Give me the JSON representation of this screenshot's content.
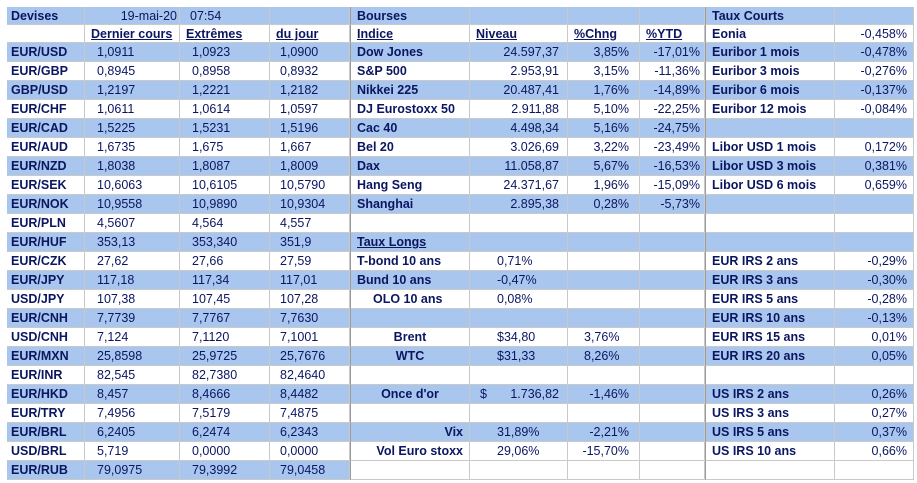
{
  "rows": [
    [
      "Devises",
      "19-mai-20",
      "07:54",
      null,
      "Bourses",
      null,
      null,
      null,
      "Taux Courts",
      null
    ],
    [
      null,
      "Dernier cours",
      "Extrêmes",
      "du jour",
      "Indice",
      "Niveau",
      "%Chng",
      "%YTD",
      "Eonia",
      "-0,458%"
    ],
    [
      "EUR/USD",
      "1,0911",
      "1,0923",
      "1,0900",
      "Dow Jones",
      "24.597,37",
      "3,85%",
      "-17,01%",
      "Euribor 1 mois",
      "-0,478%"
    ],
    [
      "EUR/GBP",
      "0,8945",
      "0,8958",
      "0,8932",
      "S&P 500",
      "2.953,91",
      "3,15%",
      "-11,36%",
      "Euribor 3 mois",
      "-0,276%"
    ],
    [
      "GBP/USD",
      "1,2197",
      "1,2221",
      "1,2182",
      "Nikkei 225",
      "20.487,41",
      "1,76%",
      "-14,89%",
      "Euribor 6 mois",
      "-0,137%"
    ],
    [
      "EUR/CHF",
      "1,0611",
      "1,0614",
      "1,0597",
      "DJ Eurostoxx 50",
      "2.911,88",
      "5,10%",
      "-22,25%",
      "Euribor 12 mois",
      "-0,084%"
    ],
    [
      "EUR/CAD",
      "1,5225",
      "1,5231",
      "1,5196",
      "Cac 40",
      "4.498,34",
      "5,16%",
      "-24,75%",
      null,
      null
    ],
    [
      "EUR/AUD",
      "1,6735",
      "1,675",
      "1,667",
      "Bel 20",
      "3.026,69",
      "3,22%",
      "-23,49%",
      "Libor USD 1 mois",
      "0,172%"
    ],
    [
      "EUR/NZD",
      "1,8038",
      "1,8087",
      "1,8009",
      "Dax",
      "11.058,87",
      "5,67%",
      "-16,53%",
      "Libor USD 3 mois",
      "0,381%"
    ],
    [
      "EUR/SEK",
      "10,6063",
      "10,6105",
      "10,5790",
      "Hang Seng",
      "24.371,67",
      "1,96%",
      "-15,09%",
      "Libor USD 6 mois",
      "0,659%"
    ],
    [
      "EUR/NOK",
      "10,9558",
      "10,9890",
      "10,9304",
      "Shanghai",
      "2.895,38",
      "0,28%",
      "-5,73%",
      null,
      null
    ],
    [
      "EUR/PLN",
      "4,5607",
      "4,564",
      "4,557",
      null,
      null,
      null,
      null,
      null,
      null
    ],
    [
      "EUR/HUF",
      "353,13",
      "353,340",
      "351,9",
      "Taux Longs",
      null,
      null,
      null,
      null,
      null
    ],
    [
      "EUR/CZK",
      "27,62",
      "27,66",
      "27,59",
      "T-bond 10 ans",
      "0,71%",
      null,
      null,
      "EUR IRS 2 ans",
      "-0,29%"
    ],
    [
      "EUR/JPY",
      "117,18",
      "117,34",
      "117,01",
      "Bund 10 ans",
      "-0,47%",
      null,
      null,
      "EUR IRS 3 ans",
      "-0,30%"
    ],
    [
      "USD/JPY",
      "107,38",
      "107,45",
      "107,28",
      "OLO 10 ans",
      "0,08%",
      null,
      null,
      "EUR IRS 5 ans",
      "-0,28%"
    ],
    [
      "EUR/CNH",
      "7,7739",
      "7,7767",
      "7,7630",
      null,
      null,
      null,
      null,
      "EUR IRS 10 ans",
      "-0,13%"
    ],
    [
      "USD/CNH",
      "7,124",
      "7,1120",
      "7,1001",
      "Brent",
      "$34,80",
      "3,76%",
      null,
      "EUR IRS 15 ans",
      "0,01%"
    ],
    [
      "EUR/MXN",
      "25,8598",
      "25,9725",
      "25,7676",
      "WTC",
      "$31,33",
      "8,26%",
      null,
      "EUR IRS 20 ans",
      "0,05%"
    ],
    [
      "EUR/INR",
      "82,545",
      "82,7380",
      "82,4640",
      null,
      null,
      null,
      null,
      null,
      null
    ],
    [
      "EUR/HKD",
      "8,457",
      "8,4666",
      "8,4482",
      "Once d'or",
      {
        "symbol": "$",
        "value": "1.736,82"
      },
      "-1,46%",
      null,
      "US IRS 2 ans",
      "0,26%"
    ],
    [
      "EUR/TRY",
      "7,4956",
      "7,5179",
      "7,4875",
      null,
      null,
      null,
      null,
      "US IRS 3 ans",
      "0,27%"
    ],
    [
      "EUR/BRL",
      "6,2405",
      "6,2474",
      "6,2343",
      "Vix",
      "31,89%",
      "-2,21%",
      null,
      "US IRS 5 ans",
      "0,37%"
    ],
    [
      "USD/BRL",
      "5,719",
      "0,0000",
      "0,0000",
      "Vol Euro stoxx",
      "29,06%",
      "-15,70%",
      null,
      "US IRS 10 ans",
      "0,66%"
    ],
    [
      "EUR/RUB",
      "79,0975",
      "79,3992",
      "79,0458",
      null,
      null,
      null,
      null,
      null,
      null
    ]
  ]
}
